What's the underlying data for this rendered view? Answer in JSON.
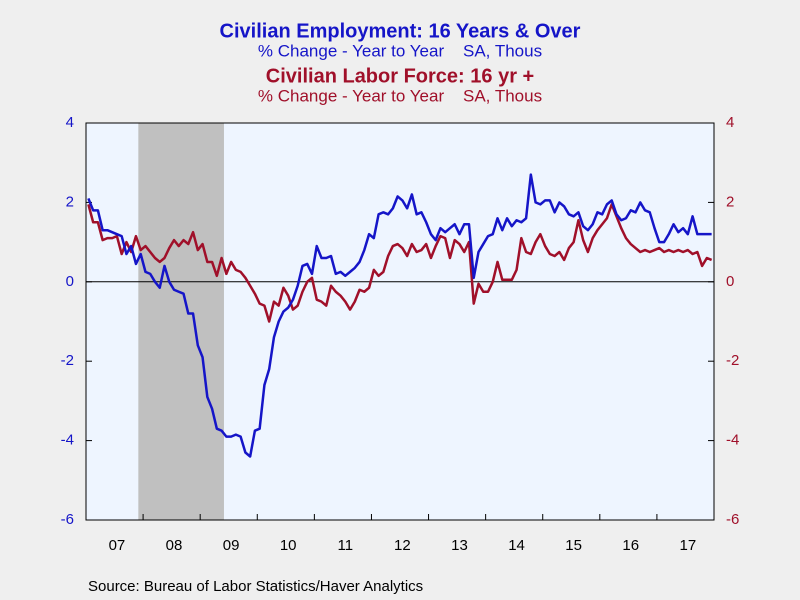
{
  "chart_data": {
    "type": "line",
    "series": [
      {
        "name": "Civilian Employment: 16 Years & Over",
        "units": "% Change - Year to Year    SA, Thous",
        "color": "#1515c8",
        "axis": "y",
        "values": [
          2.1,
          1.8,
          1.8,
          1.3,
          1.3,
          1.25,
          1.2,
          1.15,
          0.7,
          0.9,
          0.45,
          0.7,
          0.25,
          0.2,
          0.0,
          -0.15,
          0.4,
          0.0,
          -0.2,
          -0.25,
          -0.3,
          -0.8,
          -0.8,
          -1.6,
          -1.9,
          -2.9,
          -3.2,
          -3.7,
          -3.75,
          -3.9,
          -3.9,
          -3.85,
          -3.9,
          -4.3,
          -4.4,
          -3.75,
          -3.7,
          -2.6,
          -2.2,
          -1.4,
          -1.0,
          -0.75,
          -0.65,
          -0.45,
          -0.1,
          0.4,
          0.45,
          0.2,
          0.9,
          0.6,
          0.6,
          0.65,
          0.2,
          0.25,
          0.15,
          0.25,
          0.35,
          0.5,
          0.8,
          1.2,
          1.1,
          1.7,
          1.75,
          1.7,
          1.85,
          2.15,
          2.05,
          1.85,
          2.2,
          1.7,
          1.75,
          1.5,
          1.2,
          1.05,
          1.35,
          1.25,
          1.35,
          1.45,
          1.2,
          1.45,
          1.45,
          0.1,
          0.75,
          0.95,
          1.15,
          1.2,
          1.6,
          1.3,
          1.6,
          1.4,
          1.55,
          1.5,
          1.6,
          2.7,
          2.0,
          1.95,
          2.05,
          2.05,
          1.75,
          2.0,
          1.9,
          1.7,
          1.65,
          1.75,
          1.4,
          1.3,
          1.45,
          1.75,
          1.7,
          1.95,
          2.05,
          1.7,
          1.55,
          1.6,
          1.8,
          1.75,
          2.0,
          1.8,
          1.75,
          1.35,
          1.0,
          1.0,
          1.2,
          1.45,
          1.25,
          1.35,
          1.2,
          1.65,
          1.2,
          1.2,
          1.2,
          1.2
        ]
      },
      {
        "name": "Civilian Labor Force: 16 yr +",
        "units": "% Change - Year to Year    SA, Thous",
        "color": "#a0102a",
        "axis": "y2",
        "values": [
          1.95,
          1.5,
          1.5,
          1.05,
          1.1,
          1.1,
          1.15,
          0.7,
          1.0,
          0.75,
          1.15,
          0.8,
          0.9,
          0.75,
          0.6,
          0.5,
          0.6,
          0.85,
          1.05,
          0.9,
          1.05,
          0.95,
          1.25,
          0.8,
          0.95,
          0.5,
          0.5,
          0.15,
          0.6,
          0.2,
          0.5,
          0.3,
          0.25,
          0.1,
          -0.1,
          -0.3,
          -0.55,
          -0.6,
          -1.0,
          -0.5,
          -0.6,
          -0.15,
          -0.35,
          -0.7,
          -0.6,
          -0.25,
          0.0,
          0.1,
          -0.45,
          -0.5,
          -0.6,
          -0.1,
          -0.25,
          -0.35,
          -0.5,
          -0.7,
          -0.5,
          -0.2,
          -0.25,
          -0.15,
          0.3,
          0.15,
          0.25,
          0.65,
          0.9,
          0.95,
          0.85,
          0.65,
          0.95,
          0.75,
          0.8,
          0.95,
          0.6,
          0.9,
          1.15,
          1.1,
          0.6,
          1.05,
          0.95,
          0.75,
          1.0,
          -0.55,
          -0.05,
          -0.25,
          -0.25,
          0.0,
          0.5,
          0.05,
          0.05,
          0.05,
          0.3,
          1.1,
          0.75,
          0.7,
          1.0,
          1.2,
          0.9,
          0.7,
          0.65,
          0.75,
          0.55,
          0.85,
          1.0,
          1.55,
          1.05,
          0.75,
          1.1,
          1.3,
          1.45,
          1.6,
          1.95,
          1.65,
          1.35,
          1.1,
          0.95,
          0.85,
          0.75,
          0.8,
          0.75,
          0.8,
          0.85,
          0.75,
          0.8,
          0.75,
          0.8,
          0.75,
          0.8,
          0.7,
          0.75,
          0.4,
          0.6,
          0.55
        ]
      }
    ],
    "categories": [
      null,
      null,
      null,
      null,
      null,
      null,
      "07",
      null,
      null,
      null,
      null,
      null,
      null,
      null,
      null,
      null,
      null,
      null,
      "08",
      null,
      null,
      null,
      null,
      null,
      null,
      null,
      null,
      null,
      null,
      null,
      "09",
      null,
      null,
      null,
      null,
      null,
      null,
      null,
      null,
      null,
      null,
      null,
      "10",
      null,
      null,
      null,
      null,
      null,
      null,
      null,
      null,
      null,
      null,
      null,
      "11",
      null,
      null,
      null,
      null,
      null,
      null,
      null,
      null,
      null,
      null,
      null,
      "12",
      null,
      null,
      null,
      null,
      null,
      null,
      null,
      null,
      null,
      null,
      null,
      "13",
      null,
      null,
      null,
      null,
      null,
      null,
      null,
      null,
      null,
      null,
      null,
      "14",
      null,
      null,
      null,
      null,
      null,
      null,
      null,
      null,
      null,
      null,
      null,
      "15",
      null,
      null,
      null,
      null,
      null,
      null,
      null,
      null,
      null,
      null,
      null,
      "16",
      null,
      null,
      null,
      null,
      null,
      null,
      null,
      null,
      null,
      null,
      null,
      "17",
      null,
      null,
      null,
      null,
      null
    ],
    "ylim": [
      -6,
      4
    ],
    "yticks": [
      -6,
      -4,
      -2,
      0,
      2,
      4
    ],
    "y2lim": [
      -6,
      4
    ],
    "y2ticks": [
      -6,
      -4,
      -2,
      0,
      2,
      4
    ],
    "shaded_ranges": [
      [
        11,
        29
      ]
    ],
    "source": "Source:  Bureau of Labor Statistics/Haver Analytics"
  }
}
